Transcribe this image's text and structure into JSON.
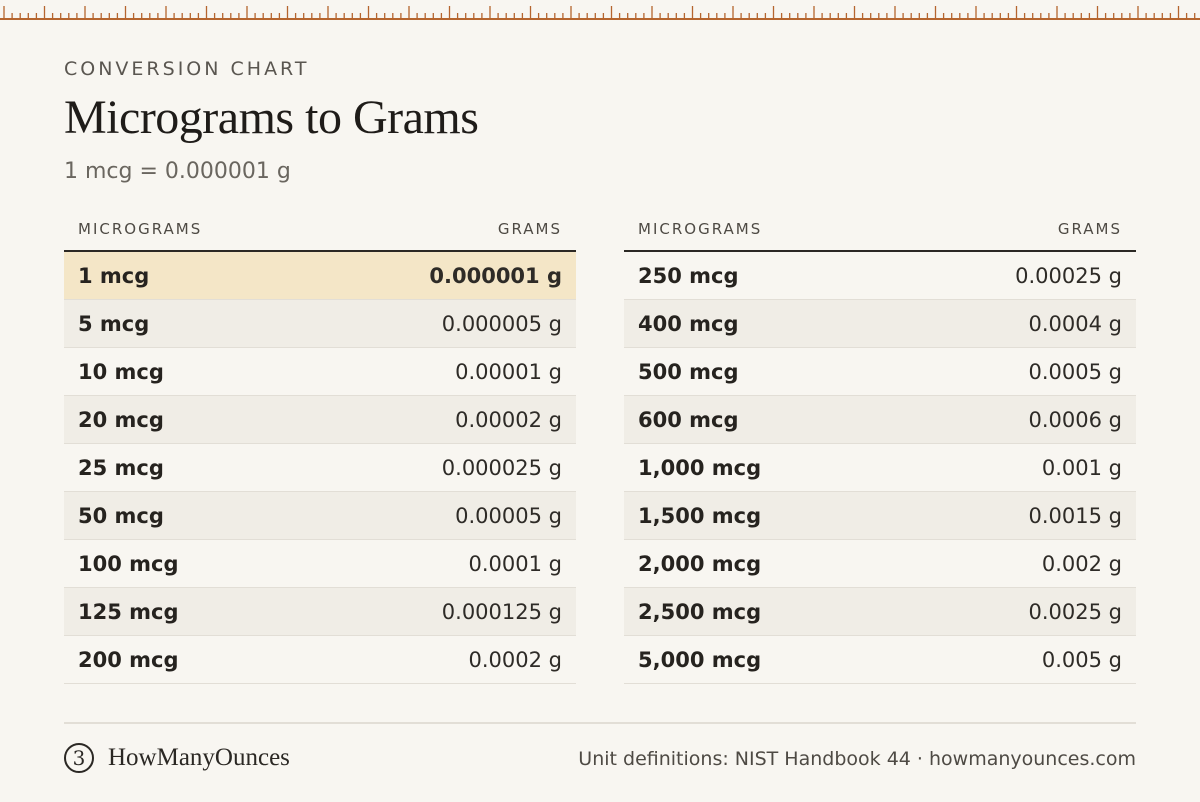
{
  "header": {
    "kicker": "CONVERSION CHART",
    "title": "Micrograms to Grams",
    "subtitle": "1 mcg = 0.000001 g"
  },
  "tables": {
    "left": {
      "col_mcg": "MICROGRAMS",
      "col_g": "GRAMS",
      "rows": [
        {
          "mcg": "1 mcg",
          "g": "0.000001 g"
        },
        {
          "mcg": "5 mcg",
          "g": "0.000005 g"
        },
        {
          "mcg": "10 mcg",
          "g": "0.00001 g"
        },
        {
          "mcg": "20 mcg",
          "g": "0.00002 g"
        },
        {
          "mcg": "25 mcg",
          "g": "0.000025 g"
        },
        {
          "mcg": "50 mcg",
          "g": "0.00005 g"
        },
        {
          "mcg": "100 mcg",
          "g": "0.0001 g"
        },
        {
          "mcg": "125 mcg",
          "g": "0.000125 g"
        },
        {
          "mcg": "200 mcg",
          "g": "0.0002 g"
        }
      ]
    },
    "right": {
      "col_mcg": "MICROGRAMS",
      "col_g": "GRAMS",
      "rows": [
        {
          "mcg": "250 mcg",
          "g": "0.00025 g"
        },
        {
          "mcg": "400 mcg",
          "g": "0.0004 g"
        },
        {
          "mcg": "500 mcg",
          "g": "0.0005 g"
        },
        {
          "mcg": "600 mcg",
          "g": "0.0006 g"
        },
        {
          "mcg": "1,000 mcg",
          "g": "0.001 g"
        },
        {
          "mcg": "1,500 mcg",
          "g": "0.0015 g"
        },
        {
          "mcg": "2,000 mcg",
          "g": "0.002 g"
        },
        {
          "mcg": "2,500 mcg",
          "g": "0.0025 g"
        },
        {
          "mcg": "5,000 mcg",
          "g": "0.005 g"
        }
      ]
    }
  },
  "footer": {
    "brand_mark": "3",
    "brand_name": "HowManyOunces",
    "source": "Unit definitions: NIST Handbook 44 · howmanyounces.com"
  },
  "colors": {
    "background": "#f8f6f1",
    "ruler": "#b5652e",
    "highlight_row": "#f4e6c7",
    "shaded_row": "#f0ede6"
  }
}
